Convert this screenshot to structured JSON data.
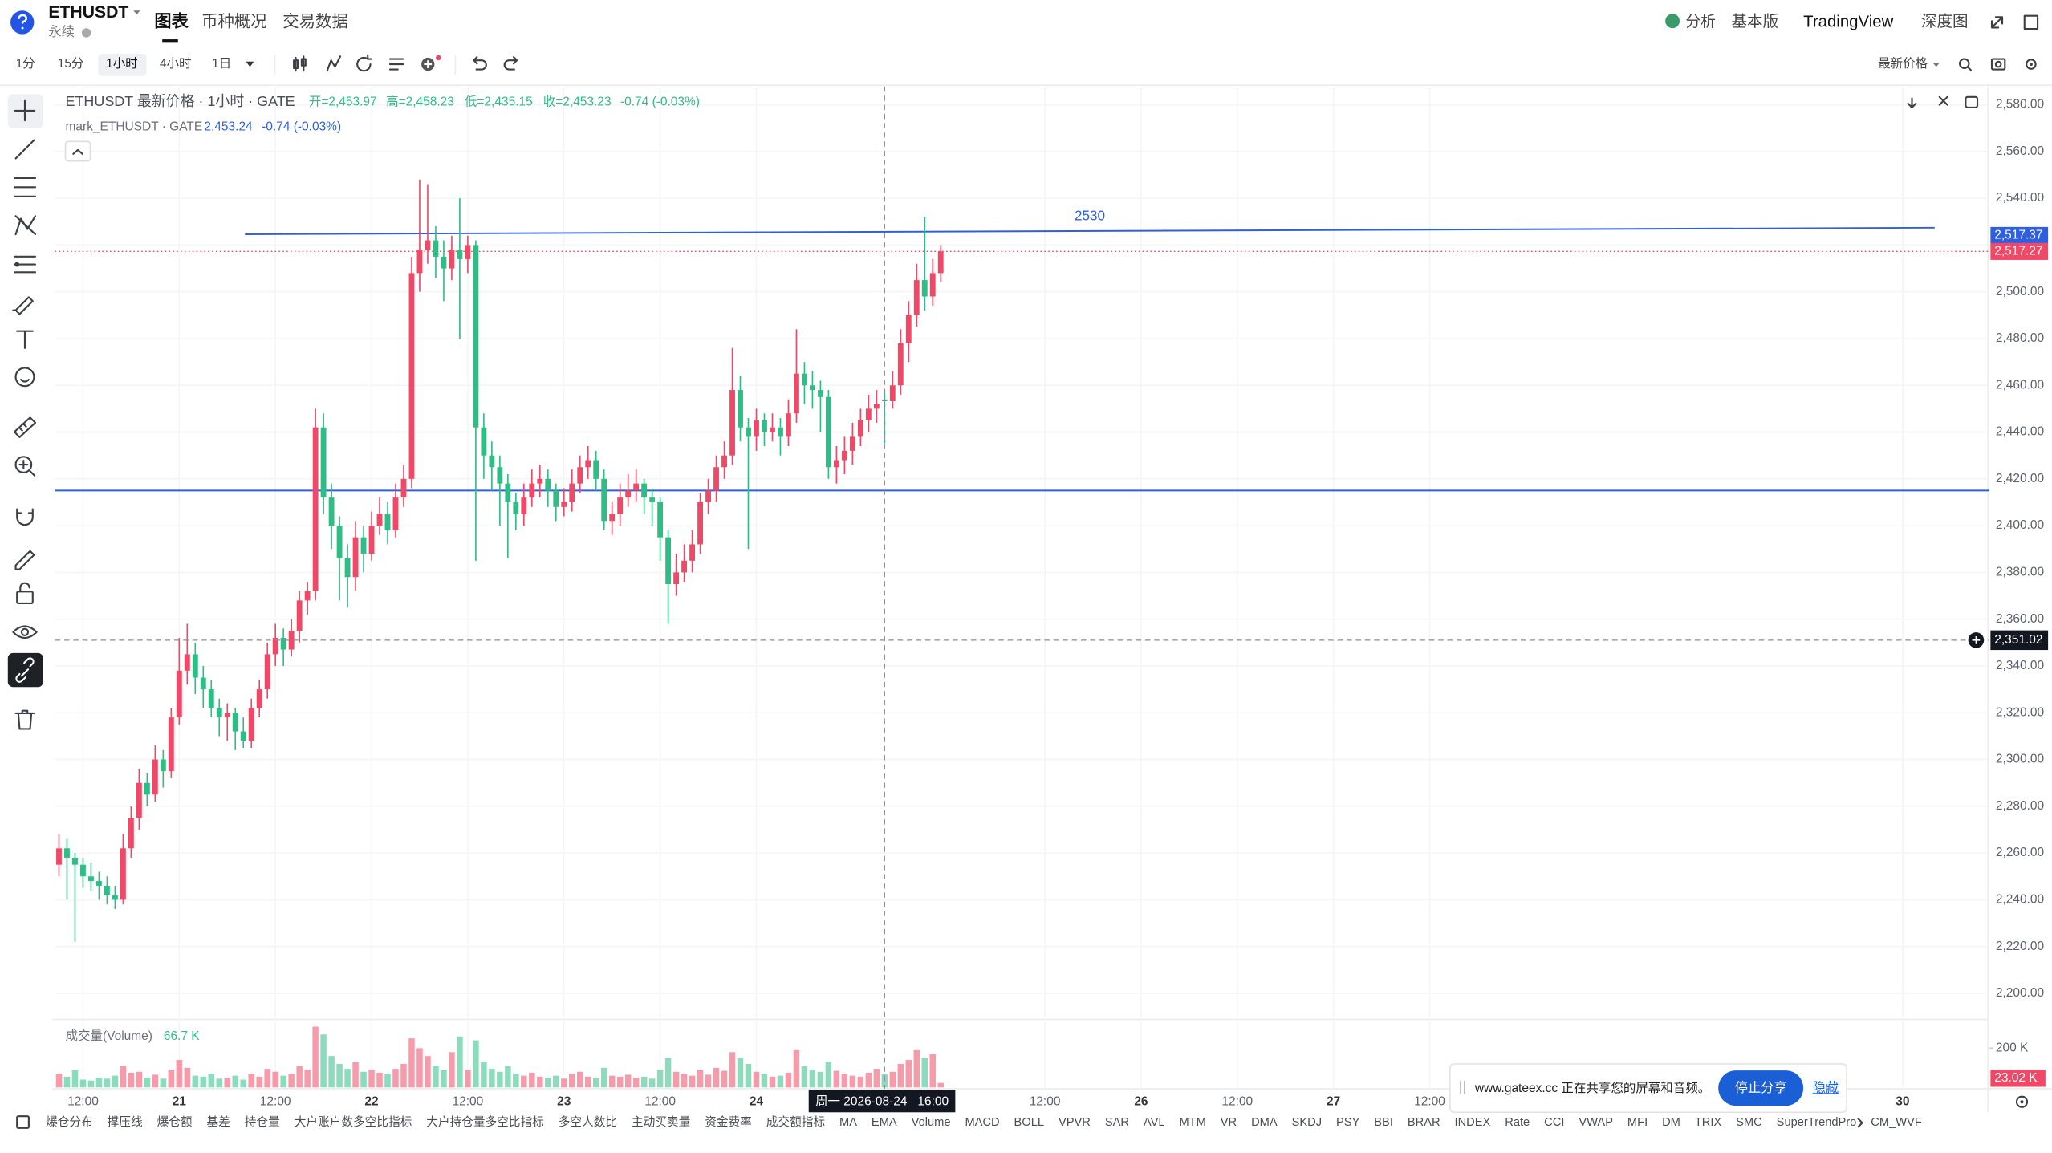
{
  "header": {
    "symbol": "ETHUSDT",
    "contract": "永续",
    "tabs": [
      "图表",
      "币种概况",
      "交易数据"
    ],
    "right_links": [
      "分析",
      "基本版",
      "TradingView",
      "深度图"
    ]
  },
  "toolbar": {
    "intervals": [
      "1分",
      "15分",
      "1小时",
      "4小时",
      "1日"
    ],
    "price_source": "最新价格"
  },
  "legend": {
    "title": "ETHUSDT 最新价格 · 1小时 · GATE",
    "ohlc": [
      "开=2,453.97",
      "高=2,458.23",
      "低=2,435.15",
      "收=2,453.23"
    ],
    "change": "-0.74 (-0.03%)",
    "mark_title": "mark_ETHUSDT · GATE",
    "mark_price": "2,453.24",
    "mark_change": "-0.74 (-0.03%)",
    "volume_title": "成交量(Volume)",
    "volume_value": "66.7 K"
  },
  "chart_data": {
    "type": "candlestick",
    "up_color": "#f04866",
    "down_color": "#2ebd85",
    "grid": true,
    "xlim": [
      -0.5,
      240.8
    ],
    "xticks": [
      {
        "value": 3,
        "label": "12:00"
      },
      {
        "value": 15,
        "label": "21"
      },
      {
        "value": 27,
        "label": "12:00"
      },
      {
        "value": 39,
        "label": "22"
      },
      {
        "value": 51,
        "label": "12:00"
      },
      {
        "value": 63,
        "label": "23"
      },
      {
        "value": 75,
        "label": "12:00"
      },
      {
        "value": 87,
        "label": "24"
      },
      {
        "value": 123,
        "label": "12:00"
      },
      {
        "value": 135,
        "label": "26"
      },
      {
        "value": 147,
        "label": "12:00"
      },
      {
        "value": 159,
        "label": "27"
      },
      {
        "value": 171,
        "label": "12:00"
      },
      {
        "value": 230,
        "label": "30"
      }
    ],
    "ylim": [
      2189.4,
      2587.8
    ],
    "yticks": [
      {
        "value": 2580,
        "label": "2,580.00"
      },
      {
        "value": 2560,
        "label": "2,560.00"
      },
      {
        "value": 2540,
        "label": "2,540.00"
      },
      {
        "value": 2520,
        "label": "2,520.00"
      },
      {
        "value": 2500,
        "label": "2,500.00"
      },
      {
        "value": 2480,
        "label": "2,480.00"
      },
      {
        "value": 2460,
        "label": "2,460.00"
      },
      {
        "value": 2440,
        "label": "2,440.00"
      },
      {
        "value": 2420,
        "label": "2,420.00"
      },
      {
        "value": 2400,
        "label": "2,400.00"
      },
      {
        "value": 2380,
        "label": "2,380.00"
      },
      {
        "value": 2360,
        "label": "2,360.00"
      },
      {
        "value": 2340,
        "label": "2,340.00"
      },
      {
        "value": 2320,
        "label": "2,320.00"
      },
      {
        "value": 2300,
        "label": "2,300.00"
      },
      {
        "value": 2280,
        "label": "2,280.00"
      },
      {
        "value": 2260,
        "label": "2,260.00"
      },
      {
        "value": 2240,
        "label": "2,240.00"
      },
      {
        "value": 2220,
        "label": "2,220.00"
      },
      {
        "value": 2200,
        "label": "2,200.00"
      }
    ],
    "candles": [
      [
        2255,
        2268,
        2250,
        2262
      ],
      [
        2262,
        2266,
        2240,
        2258
      ],
      [
        2258,
        2260,
        2222,
        2255
      ],
      [
        2255,
        2258,
        2245,
        2250
      ],
      [
        2250,
        2256,
        2244,
        2248
      ],
      [
        2248,
        2252,
        2240,
        2246
      ],
      [
        2246,
        2250,
        2238,
        2242
      ],
      [
        2242,
        2246,
        2236,
        2240
      ],
      [
        2240,
        2268,
        2238,
        2262
      ],
      [
        2262,
        2280,
        2258,
        2275
      ],
      [
        2275,
        2296,
        2270,
        2290
      ],
      [
        2290,
        2294,
        2280,
        2285
      ],
      [
        2285,
        2306,
        2282,
        2300
      ],
      [
        2300,
        2304,
        2288,
        2295
      ],
      [
        2295,
        2322,
        2292,
        2318
      ],
      [
        2318,
        2352,
        2315,
        2338
      ],
      [
        2338,
        2358,
        2332,
        2345
      ],
      [
        2345,
        2350,
        2328,
        2335
      ],
      [
        2335,
        2340,
        2322,
        2330
      ],
      [
        2330,
        2334,
        2318,
        2322
      ],
      [
        2322,
        2326,
        2310,
        2318
      ],
      [
        2318,
        2324,
        2308,
        2320
      ],
      [
        2320,
        2322,
        2304,
        2312
      ],
      [
        2312,
        2318,
        2305,
        2308
      ],
      [
        2308,
        2326,
        2305,
        2322
      ],
      [
        2322,
        2334,
        2318,
        2330
      ],
      [
        2330,
        2350,
        2326,
        2345
      ],
      [
        2345,
        2358,
        2340,
        2352
      ],
      [
        2352,
        2356,
        2340,
        2347
      ],
      [
        2347,
        2360,
        2344,
        2355
      ],
      [
        2355,
        2372,
        2350,
        2368
      ],
      [
        2368,
        2376,
        2362,
        2372
      ],
      [
        2372,
        2450,
        2368,
        2442
      ],
      [
        2442,
        2448,
        2405,
        2412
      ],
      [
        2412,
        2418,
        2390,
        2400
      ],
      [
        2400,
        2404,
        2368,
        2386
      ],
      [
        2386,
        2392,
        2365,
        2378
      ],
      [
        2378,
        2402,
        2372,
        2395
      ],
      [
        2395,
        2400,
        2380,
        2388
      ],
      [
        2388,
        2406,
        2385,
        2400
      ],
      [
        2400,
        2412,
        2396,
        2405
      ],
      [
        2405,
        2410,
        2392,
        2398
      ],
      [
        2398,
        2418,
        2395,
        2412
      ],
      [
        2412,
        2426,
        2408,
        2420
      ],
      [
        2420,
        2515,
        2416,
        2508
      ],
      [
        2508,
        2548,
        2500,
        2518
      ],
      [
        2518,
        2546,
        2512,
        2522
      ],
      [
        2522,
        2528,
        2506,
        2515
      ],
      [
        2515,
        2522,
        2496,
        2510
      ],
      [
        2510,
        2524,
        2505,
        2518
      ],
      [
        2518,
        2540,
        2480,
        2514
      ],
      [
        2514,
        2524,
        2508,
        2520
      ],
      [
        2520,
        2522,
        2385,
        2442
      ],
      [
        2442,
        2448,
        2420,
        2430
      ],
      [
        2430,
        2436,
        2415,
        2425
      ],
      [
        2425,
        2430,
        2400,
        2418
      ],
      [
        2418,
        2422,
        2386,
        2410
      ],
      [
        2410,
        2414,
        2398,
        2405
      ],
      [
        2405,
        2418,
        2400,
        2412
      ],
      [
        2412,
        2424,
        2408,
        2418
      ],
      [
        2418,
        2426,
        2412,
        2420
      ],
      [
        2420,
        2424,
        2408,
        2415
      ],
      [
        2415,
        2418,
        2402,
        2408
      ],
      [
        2408,
        2416,
        2404,
        2410
      ],
      [
        2410,
        2424,
        2406,
        2418
      ],
      [
        2418,
        2430,
        2414,
        2425
      ],
      [
        2425,
        2434,
        2420,
        2428
      ],
      [
        2428,
        2432,
        2415,
        2420
      ],
      [
        2420,
        2424,
        2398,
        2402
      ],
      [
        2402,
        2410,
        2396,
        2405
      ],
      [
        2405,
        2418,
        2400,
        2412
      ],
      [
        2412,
        2422,
        2408,
        2415
      ],
      [
        2415,
        2424,
        2410,
        2418
      ],
      [
        2418,
        2420,
        2405,
        2412
      ],
      [
        2412,
        2416,
        2400,
        2410
      ],
      [
        2410,
        2412,
        2385,
        2395
      ],
      [
        2395,
        2398,
        2358,
        2375
      ],
      [
        2375,
        2388,
        2370,
        2380
      ],
      [
        2380,
        2392,
        2376,
        2385
      ],
      [
        2385,
        2398,
        2380,
        2392
      ],
      [
        2392,
        2414,
        2388,
        2410
      ],
      [
        2410,
        2420,
        2405,
        2415
      ],
      [
        2415,
        2430,
        2410,
        2425
      ],
      [
        2425,
        2436,
        2420,
        2430
      ],
      [
        2430,
        2476,
        2426,
        2458
      ],
      [
        2458,
        2464,
        2436,
        2442
      ],
      [
        2442,
        2446,
        2390,
        2438
      ],
      [
        2438,
        2450,
        2432,
        2445
      ],
      [
        2445,
        2448,
        2434,
        2440
      ],
      [
        2440,
        2448,
        2436,
        2442
      ],
      [
        2442,
        2446,
        2430,
        2438
      ],
      [
        2438,
        2454,
        2434,
        2448
      ],
      [
        2448,
        2484,
        2444,
        2465
      ],
      [
        2465,
        2470,
        2452,
        2460
      ],
      [
        2460,
        2466,
        2450,
        2458
      ],
      [
        2458,
        2462,
        2440,
        2455
      ],
      [
        2455,
        2458,
        2420,
        2425
      ],
      [
        2425,
        2434,
        2418,
        2428
      ],
      [
        2428,
        2438,
        2422,
        2432
      ],
      [
        2432,
        2444,
        2426,
        2438
      ],
      [
        2438,
        2450,
        2434,
        2445
      ],
      [
        2445,
        2456,
        2440,
        2450
      ],
      [
        2450,
        2458,
        2444,
        2452
      ],
      [
        2453.97,
        2458.23,
        2435.15,
        2453.23
      ],
      [
        2453.23,
        2466,
        2450,
        2460
      ],
      [
        2460,
        2484,
        2456,
        2478
      ],
      [
        2478,
        2496,
        2470,
        2490
      ],
      [
        2490,
        2512,
        2485,
        2505
      ],
      [
        2505,
        2532,
        2492,
        2498
      ],
      [
        2498,
        2514,
        2494,
        2508
      ],
      [
        2508,
        2520,
        2504,
        2517.27
      ]
    ],
    "volume": [
      70,
      55,
      90,
      40,
      35,
      50,
      45,
      60,
      110,
      75,
      80,
      50,
      65,
      45,
      90,
      140,
      100,
      60,
      55,
      70,
      45,
      50,
      60,
      40,
      70,
      55,
      95,
      80,
      60,
      70,
      110,
      90,
      310,
      270,
      160,
      120,
      95,
      130,
      80,
      90,
      75,
      70,
      95,
      120,
      250,
      200,
      160,
      110,
      90,
      180,
      260,
      90,
      240,
      130,
      95,
      80,
      110,
      70,
      60,
      75,
      55,
      50,
      60,
      45,
      70,
      80,
      55,
      50,
      100,
      60,
      55,
      65,
      50,
      55,
      45,
      90,
      150,
      80,
      70,
      60,
      90,
      65,
      100,
      85,
      180,
      150,
      120,
      80,
      70,
      55,
      60,
      75,
      190,
      110,
      90,
      80,
      130,
      85,
      70,
      60,
      55,
      75,
      95,
      66.7,
      80,
      120,
      140,
      190,
      150,
      170,
      23.02
    ],
    "volume_ylim": [
      0,
      340
    ],
    "volume_yticks": [
      {
        "value": 200,
        "label": "200 K"
      }
    ],
    "volume_last": {
      "value": 23.02,
      "label": "23.02 K"
    },
    "last_price": {
      "value": 2517.27,
      "label": "2,517.27"
    },
    "mark_price": {
      "value": 2517.37,
      "label": "2,517.37"
    },
    "drawings": [
      {
        "type": "trend_line",
        "label": "2530",
        "start": [
          23.2,
          2524.6
        ],
        "end": [
          234,
          2527.4
        ],
        "color": "#2e5fe0"
      },
      {
        "type": "horizontal_line",
        "price": 2415,
        "color": "#2e5fe0"
      }
    ],
    "crosshair": {
      "x": 103,
      "time_label": "周一 2026-08-24   16:00",
      "price": {
        "value": 2351.02,
        "label": "2,351.02"
      }
    }
  },
  "indicators": [
    "爆仓分布",
    "撑压线",
    "爆仓额",
    "基差",
    "持仓量",
    "大户账户数多空比指标",
    "大户持仓量多空比指标",
    "多空人数比",
    "主动买卖量",
    "资金费率",
    "成交额指标",
    "MA",
    "EMA",
    "Volume",
    "MACD",
    "BOLL",
    "VPVR",
    "SAR",
    "AVL",
    "MTM",
    "VR",
    "DMA",
    "SKDJ",
    "PSY",
    "BBI",
    "BRAR",
    "INDEX",
    "Rate",
    "CCI",
    "VWAP",
    "MFI",
    "DM",
    "TRIX",
    "SMC",
    "SuperTrendPro",
    "CM_WVF"
  ],
  "share_banner": {
    "text": "www.gateex.cc 正在共享您的屏幕和音频。",
    "stop": "停止分享",
    "hide": "隐藏"
  }
}
